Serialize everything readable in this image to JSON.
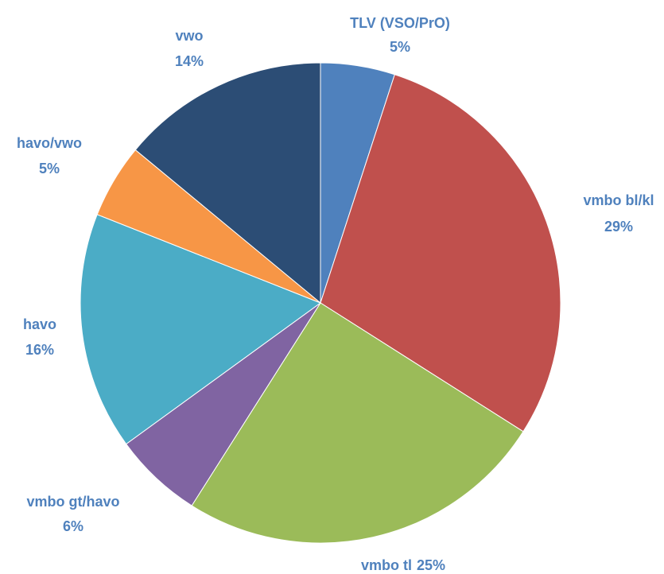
{
  "chart_data": {
    "type": "pie",
    "categories": [
      "TLV (VSO/PrO)",
      "vmbo bl/kl",
      "vmbo tl",
      "vmbo gt/havo",
      "havo",
      "havo/vwo",
      "vwo"
    ],
    "values": [
      5,
      29,
      25,
      6,
      16,
      5,
      14
    ],
    "value_labels": [
      "5%",
      "29%",
      "25%",
      "6%",
      "16%",
      "5%",
      "14%"
    ],
    "colors": [
      "#4f81bd",
      "#c0504d",
      "#9bbb59",
      "#8064a2",
      "#4bacc6",
      "#f79646",
      "#2c4d75"
    ]
  }
}
